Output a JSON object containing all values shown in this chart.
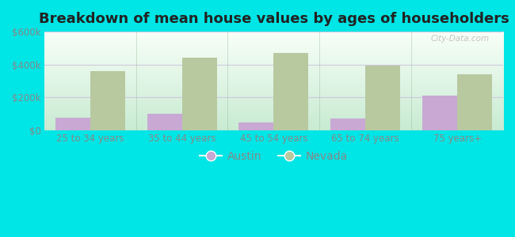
{
  "title": "Breakdown of mean house values by ages of householders",
  "categories": [
    "25 to 34 years",
    "35 to 44 years",
    "45 to 54 years",
    "65 to 74 years",
    "75 years+"
  ],
  "austin_values": [
    75000,
    100000,
    50000,
    70000,
    210000
  ],
  "nevada_values": [
    360000,
    440000,
    470000,
    395000,
    340000
  ],
  "austin_color": "#c9a8d4",
  "nevada_color": "#b8c9a0",
  "background_outer": "#00e5e5",
  "ylim": [
    0,
    600000
  ],
  "yticks": [
    0,
    200000,
    400000,
    600000
  ],
  "ytick_labels": [
    "$0",
    "$200k",
    "$400k",
    "$600k"
  ],
  "grid_color": "#d0c8e0",
  "axis_label_color": "#888888",
  "title_fontsize": 13,
  "tick_fontsize": 8.5,
  "legend_fontsize": 10,
  "bar_width": 0.38,
  "watermark_text": "City-Data.com"
}
